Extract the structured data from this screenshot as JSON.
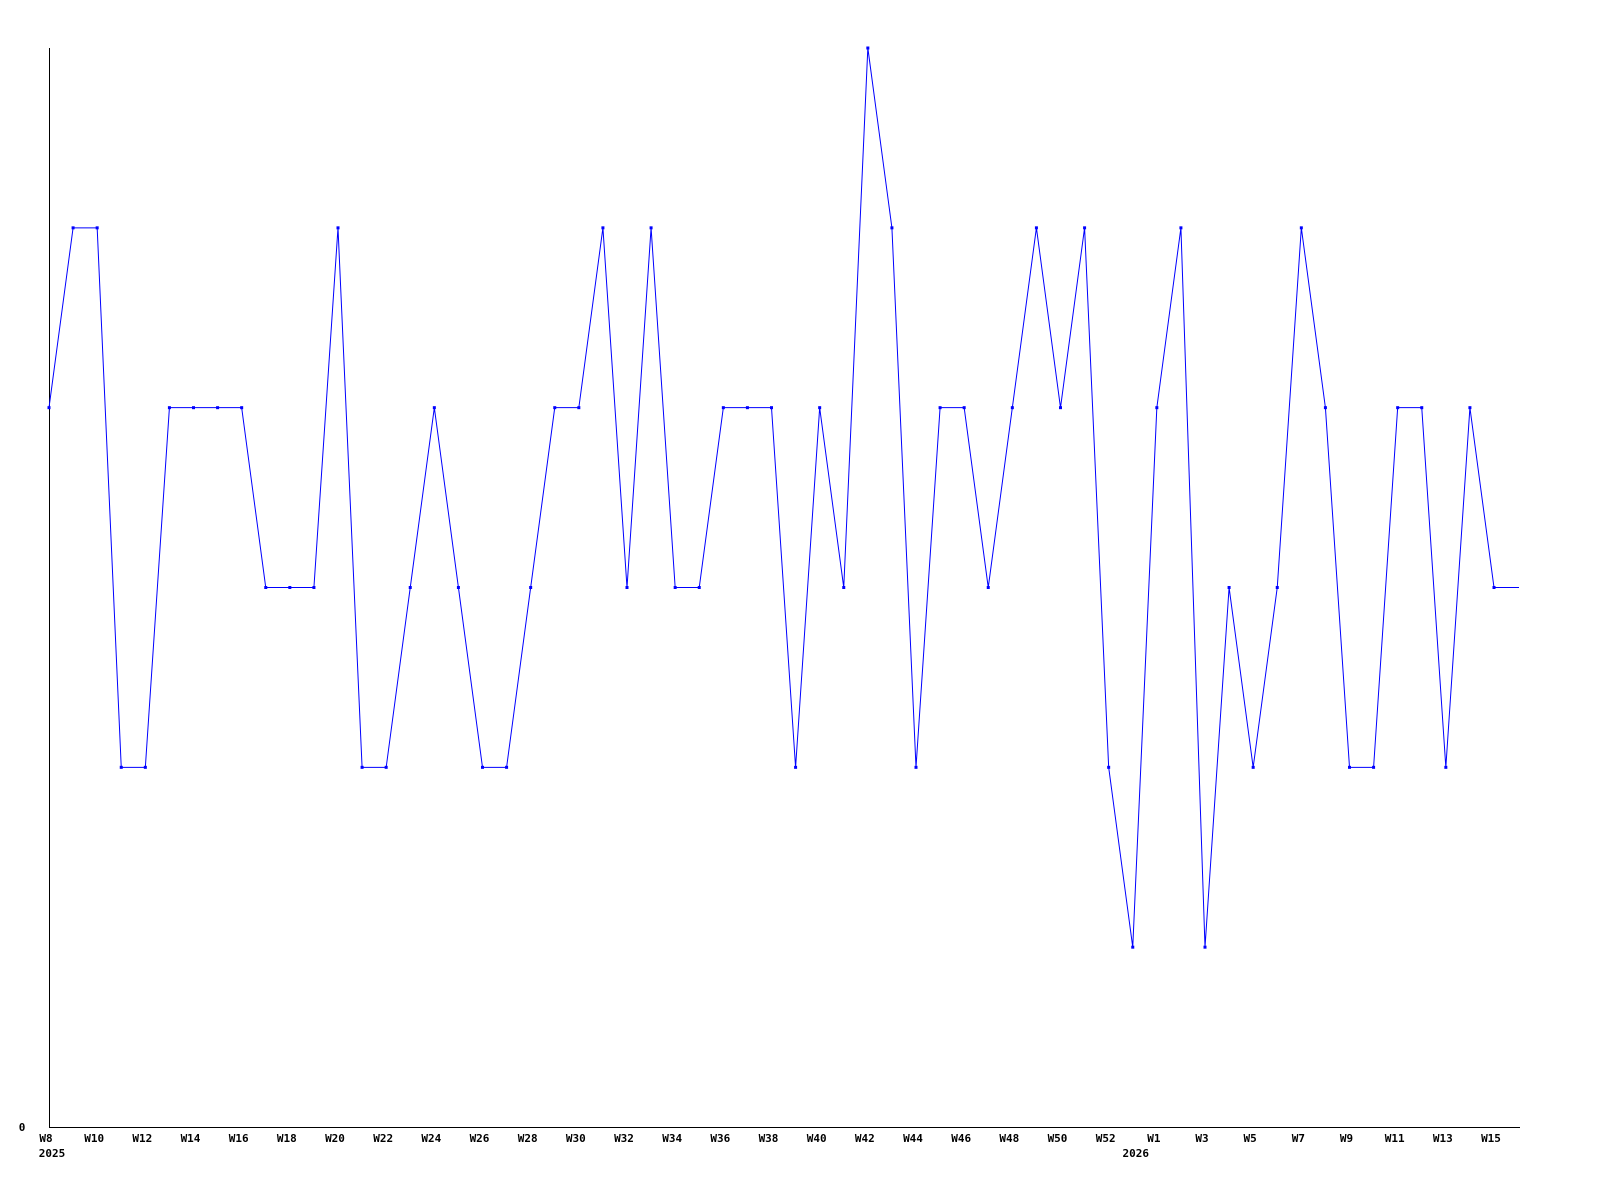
{
  "chart_data": {
    "type": "line",
    "title": "",
    "xlabel": "",
    "ylabel": "",
    "ylim": [
      0,
      6
    ],
    "y_tick_labels": [
      "0"
    ],
    "grid": false,
    "legend": "none",
    "line_color": "#0000ff",
    "x": [
      "W8",
      "W9",
      "W10",
      "W11",
      "W12",
      "W13",
      "W14",
      "W15",
      "W16",
      "W17",
      "W18",
      "W19",
      "W20",
      "W21",
      "W22",
      "W23",
      "W24",
      "W25",
      "W26",
      "W27",
      "W28",
      "W29",
      "W30",
      "W31",
      "W32",
      "W33",
      "W34",
      "W35",
      "W36",
      "W37",
      "W38",
      "W39",
      "W40",
      "W41",
      "W42",
      "W43",
      "W44",
      "W45",
      "W46",
      "W47",
      "W48",
      "W49",
      "W50",
      "W51",
      "W52",
      "",
      "W1",
      "W2",
      "W3",
      "W4",
      "W5",
      "W6",
      "W7",
      "W8",
      "W9",
      "W10",
      "W11",
      "W12",
      "W13",
      "W14",
      "W15"
    ],
    "values": [
      4,
      5,
      5,
      2,
      2,
      4,
      4,
      4,
      4,
      3,
      3,
      3,
      5,
      2,
      2,
      3,
      4,
      3,
      2,
      2,
      3,
      4,
      4,
      5,
      3,
      5,
      3,
      3,
      4,
      4,
      4,
      2,
      4,
      3,
      6,
      5,
      2,
      4,
      4,
      3,
      4,
      5,
      4,
      5,
      2,
      1,
      4,
      5,
      1,
      3,
      2,
      3,
      5,
      4,
      2,
      2,
      4,
      4,
      2,
      4,
      3
    ],
    "x_tick_labels": [
      {
        "index": 0,
        "label": "W8",
        "year": "2025"
      },
      {
        "index": 2,
        "label": "W10"
      },
      {
        "index": 4,
        "label": "W12"
      },
      {
        "index": 6,
        "label": "W14"
      },
      {
        "index": 8,
        "label": "W16"
      },
      {
        "index": 10,
        "label": "W18"
      },
      {
        "index": 12,
        "label": "W20"
      },
      {
        "index": 14,
        "label": "W22"
      },
      {
        "index": 16,
        "label": "W24"
      },
      {
        "index": 18,
        "label": "W26"
      },
      {
        "index": 20,
        "label": "W28"
      },
      {
        "index": 22,
        "label": "W30"
      },
      {
        "index": 24,
        "label": "W32"
      },
      {
        "index": 26,
        "label": "W34"
      },
      {
        "index": 28,
        "label": "W36"
      },
      {
        "index": 30,
        "label": "W38"
      },
      {
        "index": 32,
        "label": "W40"
      },
      {
        "index": 34,
        "label": "W42"
      },
      {
        "index": 36,
        "label": "W44"
      },
      {
        "index": 38,
        "label": "W46"
      },
      {
        "index": 40,
        "label": "W48"
      },
      {
        "index": 42,
        "label": "W50"
      },
      {
        "index": 44,
        "label": "W52"
      },
      {
        "index": 45,
        "label": "",
        "year": "2026"
      },
      {
        "index": 46,
        "label": "W1"
      },
      {
        "index": 48,
        "label": "W3"
      },
      {
        "index": 50,
        "label": "W5"
      },
      {
        "index": 52,
        "label": "W7"
      },
      {
        "index": 54,
        "label": "W9"
      },
      {
        "index": 56,
        "label": "W11"
      },
      {
        "index": 58,
        "label": "W13"
      },
      {
        "index": 60,
        "label": "W15"
      }
    ]
  }
}
